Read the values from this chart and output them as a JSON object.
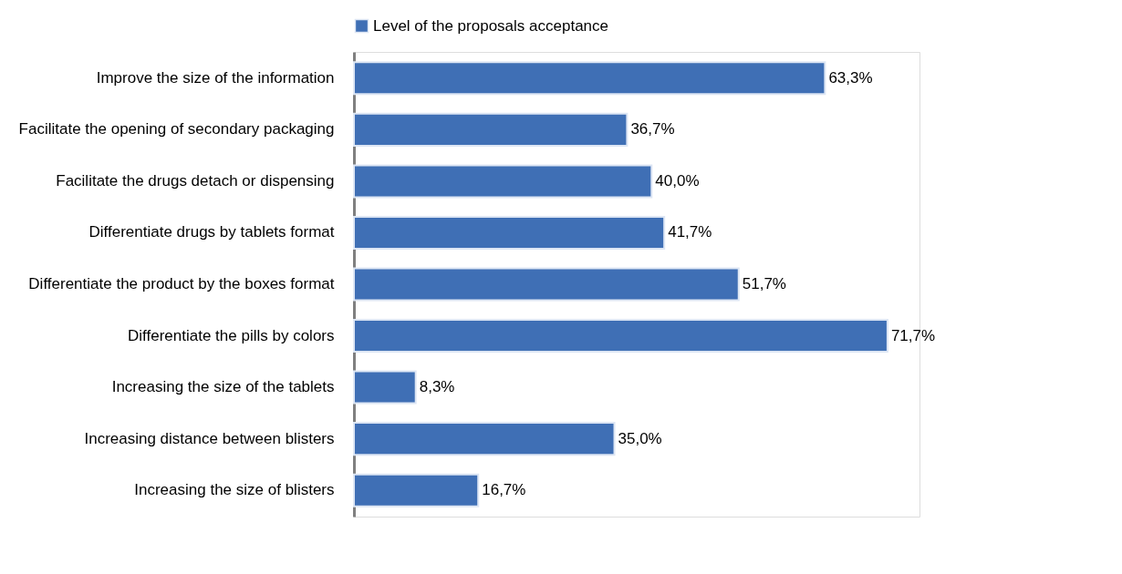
{
  "chart_data": {
    "type": "bar",
    "orientation": "horizontal",
    "legend": "top",
    "grid": false,
    "categories": [
      "Improve the size of the information",
      "Facilitate the opening of secondary packaging",
      "Facilitate the drugs detach or dispensing",
      "Differentiate drugs by tablets format",
      "Differentiate the product by the boxes format",
      "Differentiate the pills by colors",
      "Increasing the size of the tablets",
      "Increasing distance between blisters",
      "Increasing the size of blisters"
    ],
    "series": [
      {
        "name": "Level of the proposals acceptance",
        "color": "#3f6fb5",
        "values": [
          63.3,
          36.7,
          40.0,
          41.7,
          51.7,
          71.7,
          8.3,
          35.0,
          16.7
        ],
        "value_labels": [
          "63,3%",
          "36,7%",
          "40,0%",
          "41,7%",
          "51,7%",
          "71,7%",
          "8,3%",
          "35,0%",
          "16,7%"
        ]
      }
    ]
  }
}
